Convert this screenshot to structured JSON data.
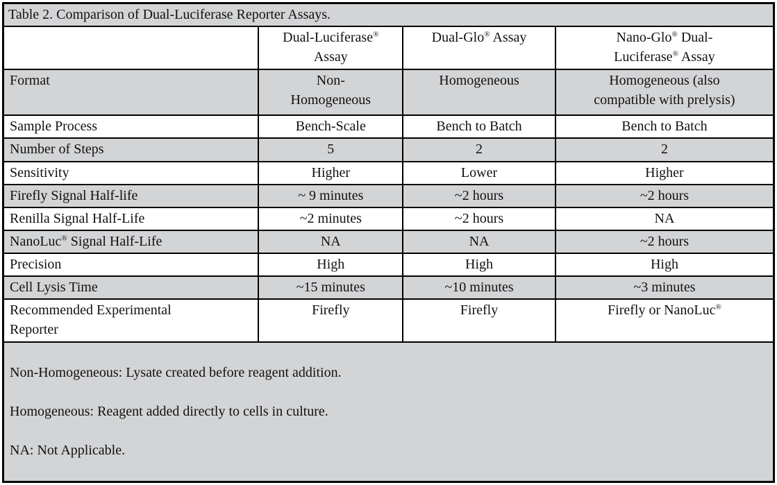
{
  "title": "Table 2. Comparison of Dual-Luciferase Reporter Assays.",
  "columns": [
    "",
    "Dual-Luciferase®\nAssay",
    "Dual-Glo® Assay",
    "Nano-Glo® Dual-\nLuciferase® Assay"
  ],
  "rows": [
    {
      "label": "Format",
      "values": [
        "Non-\nHomogeneous",
        "Homogeneous",
        "Homogeneous (also\ncompatible with prelysis)"
      ]
    },
    {
      "label": "Sample Process",
      "values": [
        "Bench-Scale",
        "Bench to Batch",
        "Bench to Batch"
      ]
    },
    {
      "label": "Number of Steps",
      "values": [
        "5",
        "2",
        "2"
      ]
    },
    {
      "label": "Sensitivity",
      "values": [
        "Higher",
        "Lower",
        "Higher"
      ]
    },
    {
      "label": "Firefly Signal Half-life",
      "values": [
        "~ 9 minutes",
        "~2 hours",
        "~2 hours"
      ]
    },
    {
      "label": "Renilla Signal Half-Life",
      "values": [
        "~2 minutes",
        "~2 hours",
        "NA"
      ]
    },
    {
      "label": "NanoLuc® Signal Half-Life",
      "values": [
        "NA",
        "NA",
        "~2 hours"
      ]
    },
    {
      "label": "Precision",
      "values": [
        "High",
        "High",
        "High"
      ]
    },
    {
      "label": "Cell Lysis Time",
      "values": [
        "~15 minutes",
        "~10 minutes",
        "~3 minutes"
      ]
    },
    {
      "label": "Recommended Experimental\nReporter",
      "values": [
        "Firefly",
        "Firefly",
        "Firefly or NanoLuc®"
      ]
    }
  ],
  "footnotes": [
    "Non-Homogeneous: Lysate created before reagent addition.",
    "Homogeneous: Reagent added directly to cells in culture.",
    "NA: Not Applicable."
  ],
  "colors": {
    "stripe": "#d3d4d6",
    "border": "#000000",
    "background": "#ffffff"
  }
}
